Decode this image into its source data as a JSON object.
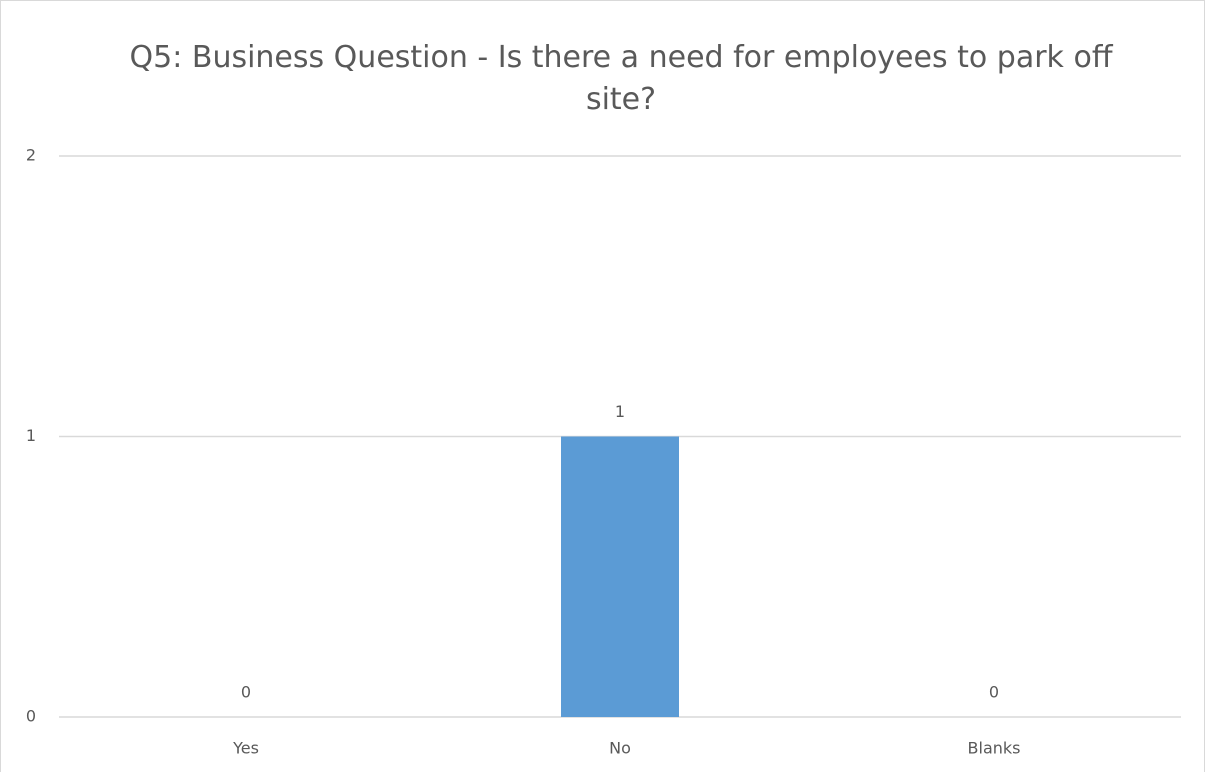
{
  "chart_data": {
    "type": "bar",
    "title": "Q5: Business Question - Is there a need for employees to park off site?",
    "categories": [
      "Yes",
      "No",
      "Blanks"
    ],
    "values": [
      0,
      1,
      0
    ],
    "color": "#5b9bd5",
    "ylim": [
      0,
      2
    ],
    "yticks": [
      0,
      1,
      2
    ],
    "grid": true,
    "data_labels": true
  }
}
